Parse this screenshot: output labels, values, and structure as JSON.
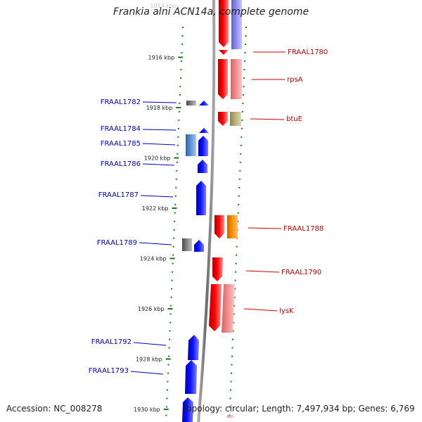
{
  "title": "Frankia alni ACN14a, complete genome",
  "accession": "Accession: NC_008278",
  "summary": "Topology: circular; Length: 7,497,934 bp; Genes: 6,769",
  "colors": {
    "minus_strand": "#0000ee",
    "plus_strand": "#ee0000",
    "scale_dots": "#1a7a1a",
    "genome_axis": "#888888"
  },
  "scale_ticks": [
    {
      "label": "1914 kbp",
      "kbp": 1914
    },
    {
      "label": "1916 kbp",
      "kbp": 1916
    },
    {
      "label": "1918 kbp",
      "kbp": 1918
    },
    {
      "label": "1920 kbp",
      "kbp": 1920
    },
    {
      "label": "1922 kbp",
      "kbp": 1922
    },
    {
      "label": "1924 kbp",
      "kbp": 1924
    },
    {
      "label": "1926 kbp",
      "kbp": 1926
    },
    {
      "label": "1928 kbp",
      "kbp": 1928
    },
    {
      "label": "1930 kbp",
      "kbp": 1930
    }
  ],
  "left_labels": [
    {
      "text": "FRAAL1782"
    },
    {
      "text": "FRAAL1784"
    },
    {
      "text": "FRAAL1785"
    },
    {
      "text": "FRAAL1786"
    },
    {
      "text": "FRAAL1787"
    },
    {
      "text": "FRAAL1789"
    },
    {
      "text": "FRAAL1792"
    },
    {
      "text": "FRAAL1793"
    }
  ],
  "right_labels": [
    {
      "text": "FRAAL1780"
    },
    {
      "text": "rpsA"
    },
    {
      "text": "btuE"
    },
    {
      "text": "FRAAL1788"
    },
    {
      "text": "FRAAL1790"
    },
    {
      "text": "lysK"
    }
  ]
}
